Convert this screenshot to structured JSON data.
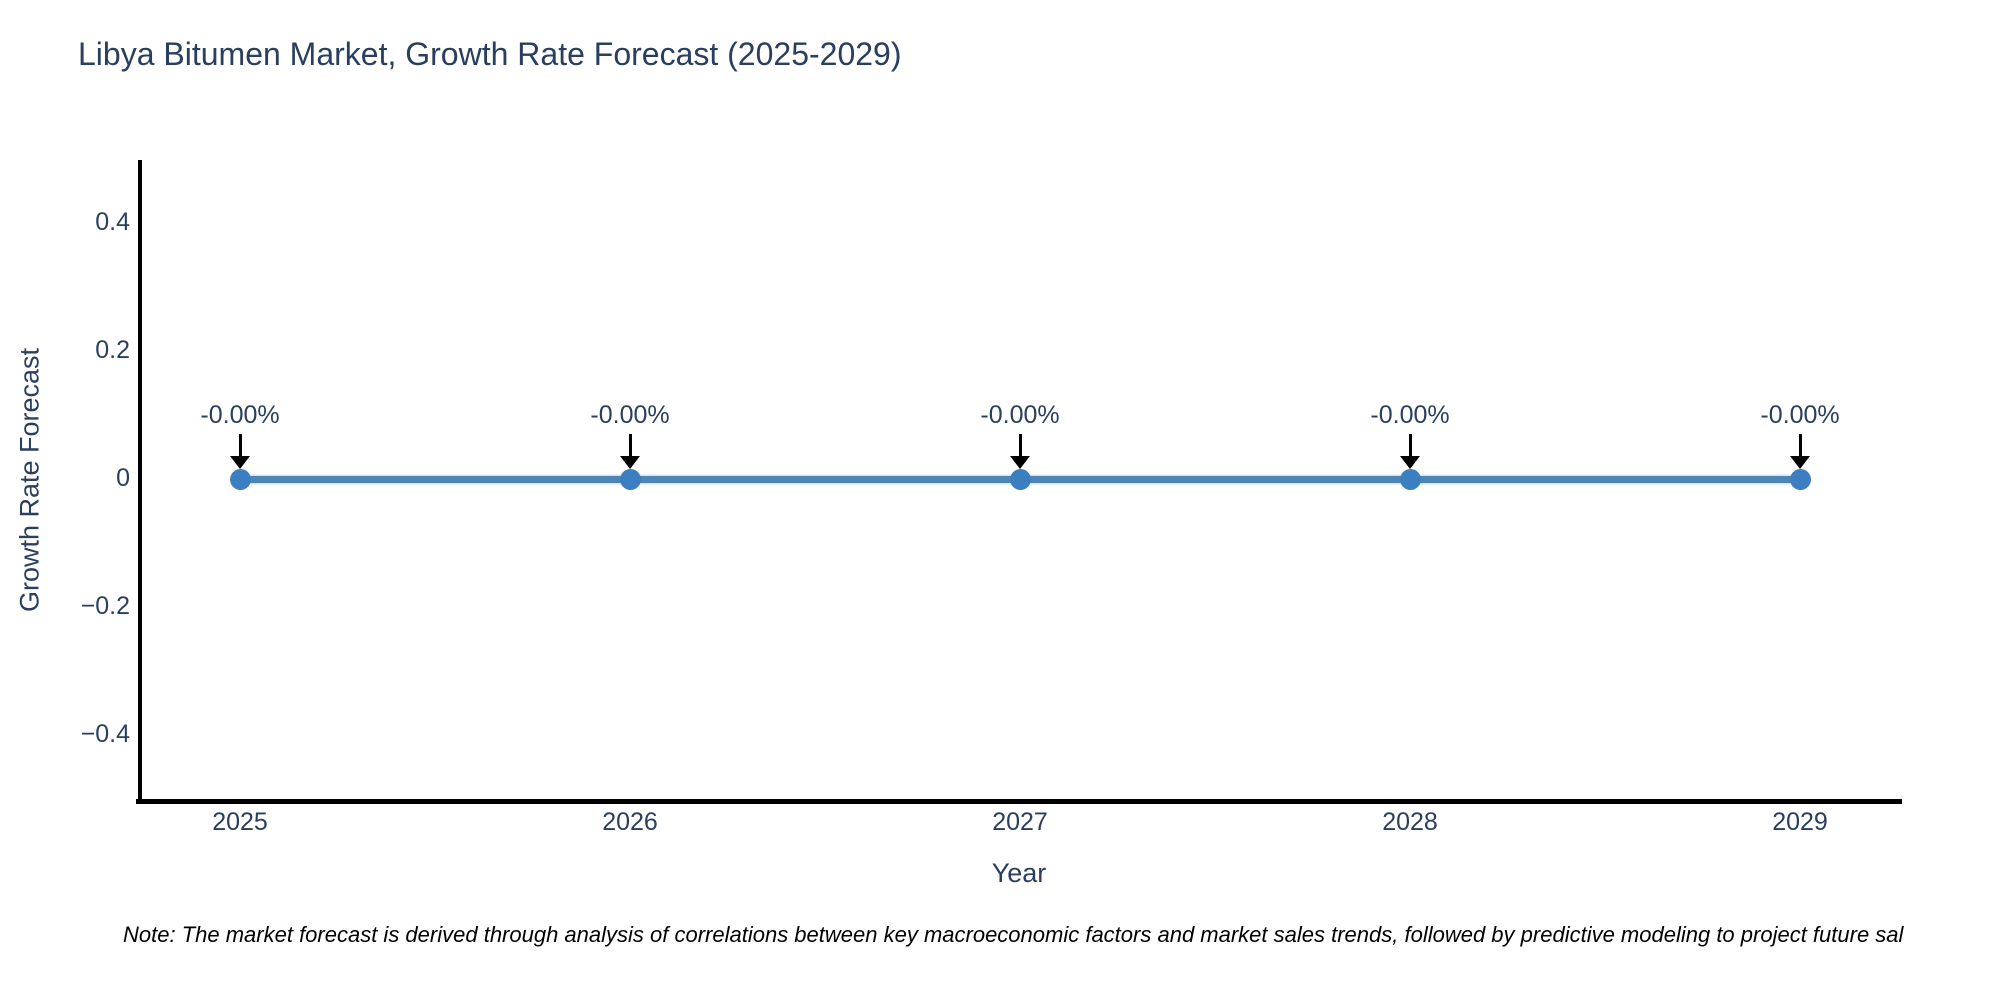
{
  "title": "Libya Bitumen Market, Growth Rate Forecast (2025-2029)",
  "note": "Note: The market forecast is derived through analysis of correlations between key macroeconomic factors and market sales trends, followed by predictive modeling to project future sal",
  "chart_data": {
    "type": "line",
    "title": "Libya Bitumen Market, Growth Rate Forecast (2025-2029)",
    "xlabel": "Year",
    "ylabel": "Growth Rate Forecast",
    "x": [
      2025,
      2026,
      2027,
      2028,
      2029
    ],
    "y": [
      0,
      0,
      0,
      0,
      0
    ],
    "point_labels": [
      "-0.00%",
      "-0.00%",
      "-0.00%",
      "-0.00%",
      "-0.00%"
    ],
    "xtick_labels": [
      "2025",
      "2026",
      "2027",
      "2028",
      "2029"
    ],
    "ytick_labels": [
      "0.4",
      "0.2",
      "0",
      "−0.2",
      "−0.4"
    ],
    "ytick_values": [
      0.4,
      0.2,
      0,
      -0.2,
      -0.4
    ],
    "xlim": [
      2024.74,
      2029.26
    ],
    "ylim": [
      -0.5,
      0.5
    ],
    "grid": false,
    "legend": "none",
    "annotation_style": "down-arrow",
    "colors": {
      "line": "#4e85b7",
      "marker": "#3c7fc0",
      "axis": "#000000",
      "text": "#2a3f5f",
      "note_text": "#000000",
      "arrow": "#000000",
      "background": "#ffffff"
    }
  }
}
